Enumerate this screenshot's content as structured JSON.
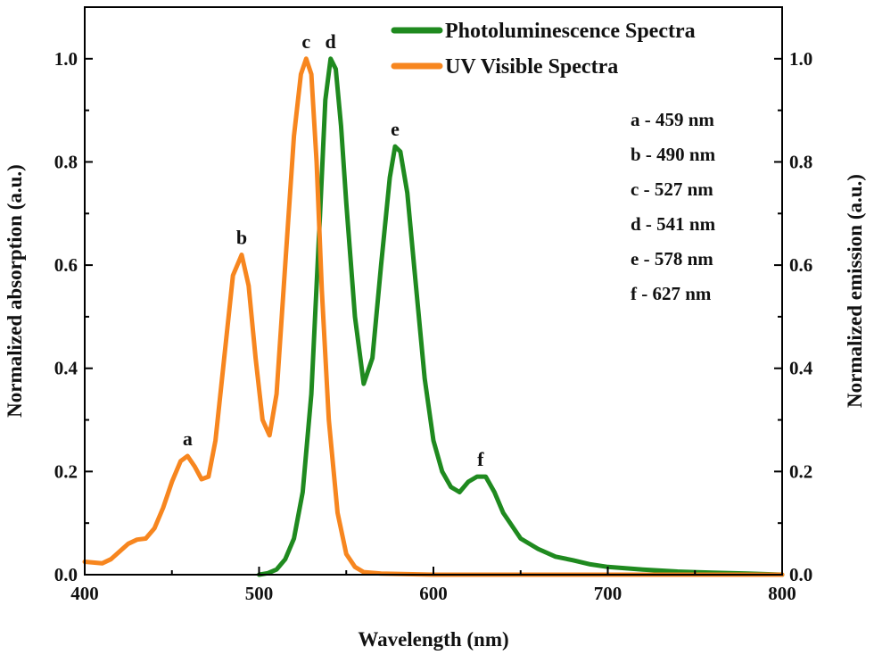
{
  "chart_data": {
    "type": "line",
    "xlabel": "Wavelength (nm)",
    "ylabel_left": "Normalized absorption (a.u.)",
    "ylabel_right": "Normalized emission (a.u.)",
    "xlim": [
      400,
      800
    ],
    "ylim": [
      0,
      1.1
    ],
    "xticks": [
      "400",
      "500",
      "600",
      "700",
      "800"
    ],
    "yticks": [
      "0.0",
      "0.2",
      "0.4",
      "0.6",
      "0.8",
      "1.0"
    ],
    "grid": false,
    "legend_position": "top-right",
    "series": [
      {
        "name": "Photoluminescence Spectra",
        "color": "#1f8a1f",
        "x": [
          500,
          505,
          510,
          515,
          520,
          525,
          530,
          535,
          538,
          541,
          544,
          547,
          550,
          555,
          560,
          565,
          570,
          575,
          578,
          581,
          585,
          590,
          595,
          600,
          605,
          610,
          615,
          620,
          625,
          630,
          635,
          640,
          650,
          660,
          670,
          680,
          690,
          700,
          720,
          740,
          760,
          780,
          800
        ],
        "y": [
          0.0,
          0.003,
          0.01,
          0.03,
          0.07,
          0.16,
          0.35,
          0.7,
          0.92,
          1.0,
          0.98,
          0.87,
          0.72,
          0.5,
          0.37,
          0.42,
          0.6,
          0.77,
          0.83,
          0.82,
          0.74,
          0.56,
          0.38,
          0.26,
          0.2,
          0.17,
          0.16,
          0.18,
          0.19,
          0.19,
          0.16,
          0.12,
          0.07,
          0.05,
          0.035,
          0.028,
          0.02,
          0.015,
          0.01,
          0.006,
          0.004,
          0.002,
          0.0
        ]
      },
      {
        "name": "UV Visible Spectra",
        "color": "#f7861f",
        "x": [
          400,
          410,
          415,
          420,
          425,
          430,
          435,
          440,
          445,
          450,
          455,
          459,
          463,
          467,
          471,
          475,
          480,
          485,
          490,
          494,
          498,
          502,
          506,
          510,
          515,
          520,
          524,
          527,
          530,
          533,
          536,
          540,
          545,
          550,
          555,
          560,
          570,
          600,
          650,
          700,
          750,
          800
        ],
        "y": [
          0.025,
          0.022,
          0.03,
          0.045,
          0.06,
          0.068,
          0.07,
          0.09,
          0.13,
          0.18,
          0.22,
          0.23,
          0.21,
          0.185,
          0.19,
          0.26,
          0.42,
          0.58,
          0.62,
          0.56,
          0.42,
          0.3,
          0.27,
          0.35,
          0.6,
          0.85,
          0.97,
          1.0,
          0.97,
          0.8,
          0.55,
          0.3,
          0.12,
          0.04,
          0.015,
          0.005,
          0.002,
          0.0,
          0.0,
          0.0,
          0.0,
          0.0
        ]
      }
    ],
    "peak_labels": [
      {
        "label": "a",
        "x": 459,
        "y": 0.23,
        "series": 1
      },
      {
        "label": "b",
        "x": 490,
        "y": 0.62,
        "series": 1
      },
      {
        "label": "c",
        "x": 527,
        "y": 1.0,
        "series": 1
      },
      {
        "label": "d",
        "x": 541,
        "y": 1.0,
        "series": 0
      },
      {
        "label": "e",
        "x": 578,
        "y": 0.83,
        "series": 0
      },
      {
        "label": "f",
        "x": 627,
        "y": 0.19,
        "series": 0
      }
    ],
    "annotations": [
      "a - 459 nm",
      "b - 490 nm",
      "c - 527 nm",
      "d - 541 nm",
      "e - 578 nm",
      "f - 627 nm"
    ]
  }
}
